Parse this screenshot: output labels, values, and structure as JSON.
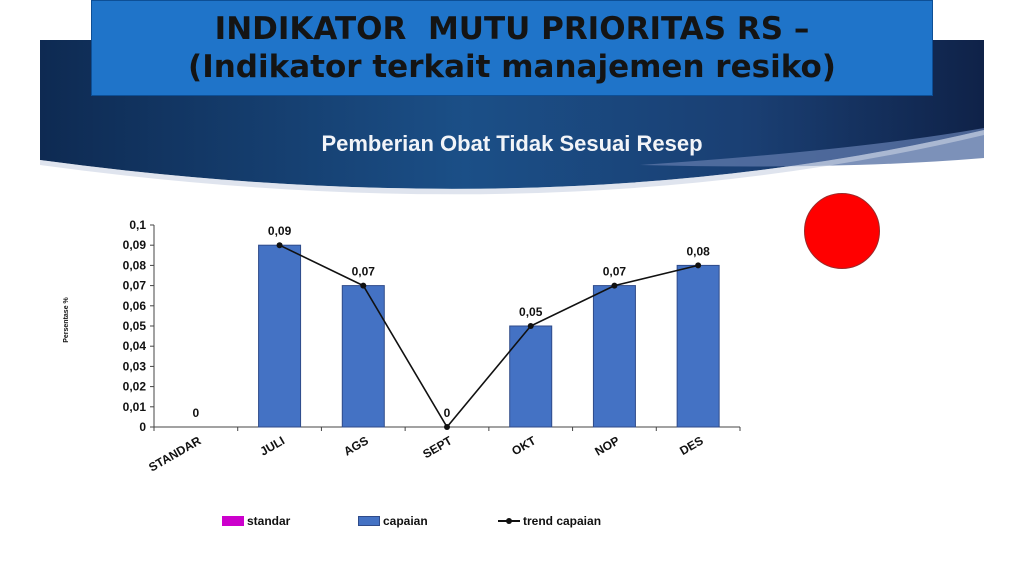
{
  "slide": {
    "title_line1": "INDIKATOR  MUTU PRIORITAS RS –",
    "title_line2": "(Indikator terkait manajemen resiko)",
    "status_color": "#ff0000"
  },
  "chart_data": {
    "type": "bar",
    "title": "Pemberian Obat Tidak Sesuai Resep",
    "ylabel": "Persentase %",
    "xlabel": "",
    "categories": [
      "STANDAR",
      "JULI",
      "AGS",
      "SEPT",
      "OKT",
      "NOP",
      "DES"
    ],
    "ylim": [
      0,
      0.1
    ],
    "y_ticks": [
      "0",
      "0,01",
      "0,02",
      "0,03",
      "0,04",
      "0,05",
      "0,06",
      "0,07",
      "0,08",
      "0,09",
      "0,1"
    ],
    "series": [
      {
        "name": "standar",
        "kind": "bar",
        "color": "#cc00cc",
        "values": [
          0,
          null,
          null,
          null,
          null,
          null,
          null
        ]
      },
      {
        "name": "capaian",
        "kind": "bar",
        "color": "#4472c4",
        "values": [
          null,
          0.09,
          0.07,
          0,
          0.05,
          0.07,
          0.08
        ]
      },
      {
        "name": "trend capaian",
        "kind": "line",
        "color": "#111111",
        "values": [
          null,
          0.09,
          0.07,
          0,
          0.05,
          0.07,
          0.08
        ]
      }
    ],
    "data_labels": [
      "0",
      "0,09",
      "0,07",
      "0",
      "0,05",
      "0,07",
      "0,08"
    ],
    "legend_position": "bottom",
    "grid": false
  }
}
